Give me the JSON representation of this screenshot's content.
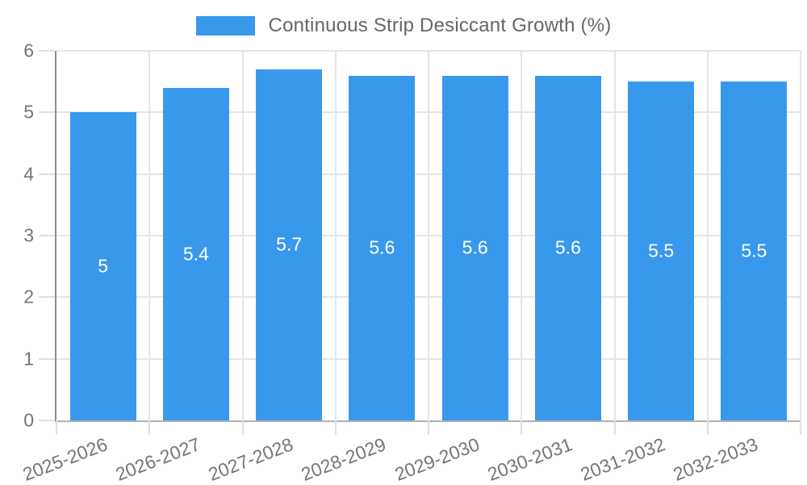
{
  "chart_data": {
    "type": "bar",
    "title": "Continuous Strip Desiccant Growth (%)",
    "legend": {
      "position": "top",
      "label": "Continuous Strip Desiccant Growth (%)"
    },
    "categories": [
      "2025-2026",
      "2026-2027",
      "2027-2028",
      "2028-2029",
      "2029-2030",
      "2030-2031",
      "2031-2032",
      "2032-2033"
    ],
    "series": [
      {
        "name": "Continuous Strip Desiccant Growth (%)",
        "values": [
          5,
          5.4,
          5.7,
          5.6,
          5.6,
          5.6,
          5.5,
          5.5
        ],
        "data_labels": [
          "5",
          "5.4",
          "5.7",
          "5.6",
          "5.6",
          "5.6",
          "5.5",
          "5.5"
        ],
        "color": "#3899EC"
      }
    ],
    "xlabel": "",
    "ylabel": "",
    "ylim": [
      0,
      6
    ],
    "yticks": [
      "0",
      "1",
      "2",
      "3",
      "4",
      "5",
      "6"
    ],
    "grid": true,
    "x_tick_rotation_deg": -21
  },
  "colors": {
    "background": "#ffffff",
    "bar": "#3899EC",
    "grid": "#e5e5e5",
    "axis_y": "#8f8f8f",
    "axis_x": "#b2b2b2",
    "tick": "#e0e0e0",
    "tick_label": "#757575",
    "legend_text": "#666666",
    "bar_value_label": "#ffffff"
  }
}
